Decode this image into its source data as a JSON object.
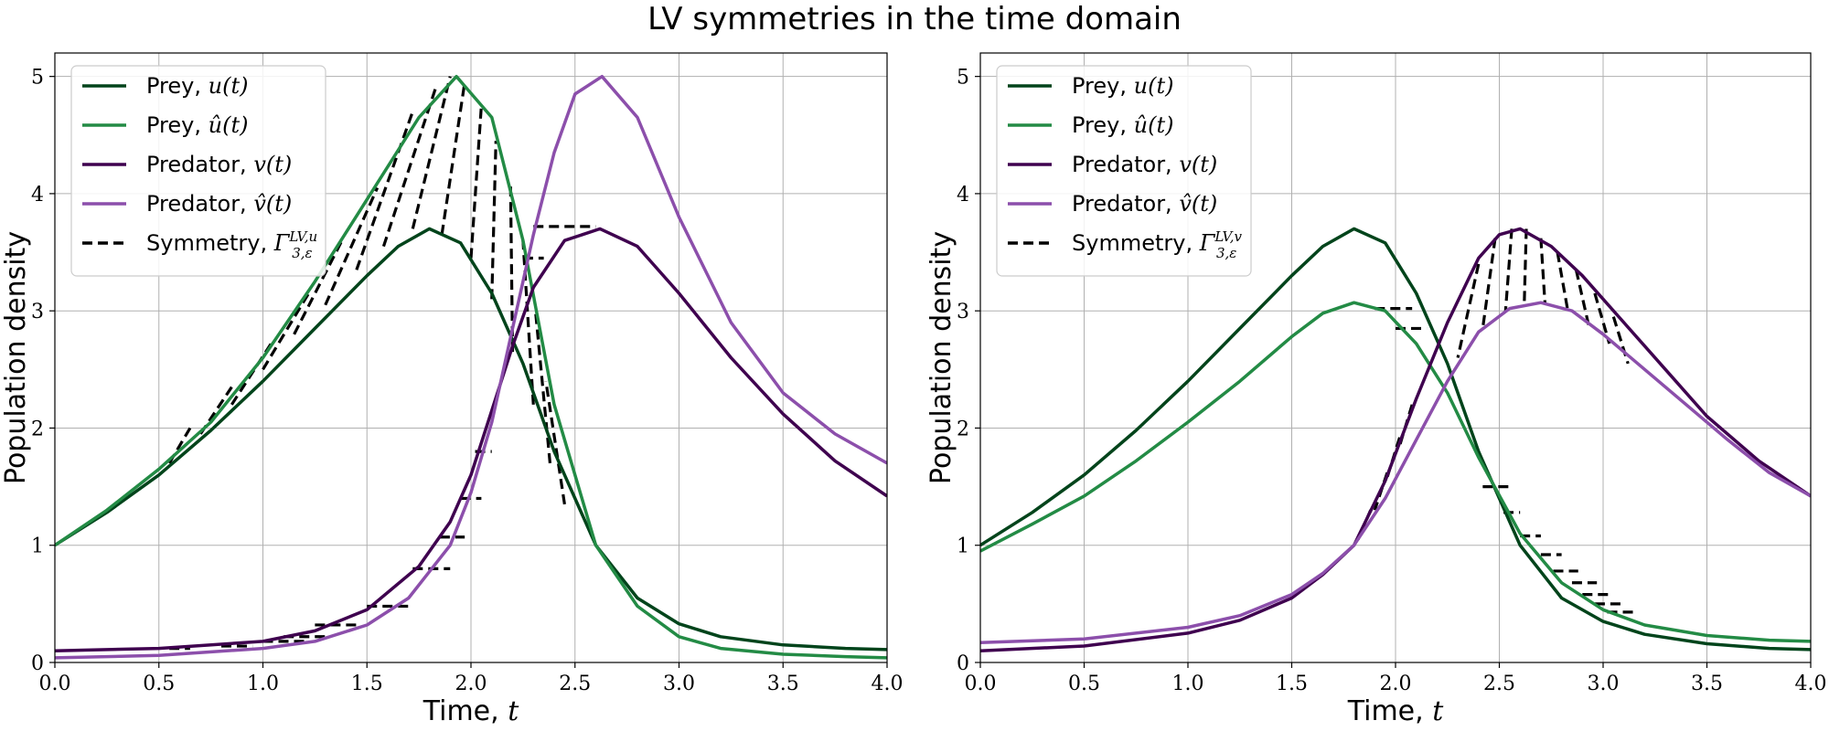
{
  "figure_title": "LV symmetries in the time domain",
  "colors": {
    "prey": "#00441b",
    "prey_hat": "#238b45",
    "predator": "#3f004f",
    "predator_hat": "#8c4fab",
    "symmetry": "#000000",
    "grid": "#b0b0b0"
  },
  "chart_data": [
    {
      "type": "line",
      "title": "",
      "xlabel": "Time, t",
      "ylabel": "Population density",
      "xlim": [
        0,
        4
      ],
      "ylim": [
        0,
        5.2
      ],
      "xticks": [
        "0.0",
        "0.5",
        "1.0",
        "1.5",
        "2.0",
        "2.5",
        "3.0",
        "3.5",
        "4.0"
      ],
      "yticks": [
        "0",
        "1",
        "2",
        "3",
        "4",
        "5"
      ],
      "grid": true,
      "legend_position": "top-left",
      "legend": [
        {
          "label": "Prey, u(t)",
          "color": "#00441b",
          "style": "solid"
        },
        {
          "label": "Prey, û(t)",
          "color": "#238b45",
          "style": "solid"
        },
        {
          "label": "Predator, v(t)",
          "color": "#3f004f",
          "style": "solid"
        },
        {
          "label": "Predator, v̂(t)",
          "color": "#8c4fab",
          "style": "solid"
        },
        {
          "label": "Symmetry, Γ^{LV,u}_{3,ε}",
          "color": "#000000",
          "style": "dashed"
        }
      ],
      "series": [
        {
          "name": "Prey, u(t)",
          "color": "#00441b",
          "x": [
            0,
            0.25,
            0.5,
            0.75,
            1.0,
            1.25,
            1.5,
            1.65,
            1.8,
            1.95,
            2.1,
            2.25,
            2.4,
            2.6,
            2.8,
            3.0,
            3.2,
            3.5,
            3.8,
            4.0
          ],
          "y": [
            1.0,
            1.28,
            1.6,
            1.98,
            2.4,
            2.85,
            3.3,
            3.55,
            3.7,
            3.58,
            3.15,
            2.55,
            1.8,
            1.0,
            0.55,
            0.33,
            0.22,
            0.15,
            0.12,
            0.11
          ]
        },
        {
          "name": "Prey, û(t)",
          "color": "#238b45",
          "x": [
            0,
            0.25,
            0.5,
            0.75,
            1.0,
            1.25,
            1.5,
            1.75,
            1.93,
            2.1,
            2.25,
            2.4,
            2.6,
            2.8,
            3.0,
            3.2,
            3.5,
            3.8,
            4.0
          ],
          "y": [
            1.0,
            1.3,
            1.65,
            2.05,
            2.6,
            3.25,
            3.95,
            4.65,
            5.0,
            4.65,
            3.6,
            2.2,
            1.0,
            0.48,
            0.22,
            0.12,
            0.07,
            0.05,
            0.04
          ]
        },
        {
          "name": "Predator, v(t)",
          "color": "#3f004f",
          "x": [
            0,
            0.5,
            1.0,
            1.25,
            1.5,
            1.75,
            1.9,
            2.0,
            2.1,
            2.2,
            2.3,
            2.45,
            2.62,
            2.8,
            3.0,
            3.25,
            3.5,
            3.75,
            4.0
          ],
          "y": [
            0.1,
            0.12,
            0.18,
            0.27,
            0.45,
            0.82,
            1.2,
            1.6,
            2.15,
            2.7,
            3.2,
            3.6,
            3.7,
            3.55,
            3.15,
            2.6,
            2.12,
            1.72,
            1.42
          ]
        },
        {
          "name": "Predator, v̂(t)",
          "color": "#8c4fab",
          "x": [
            0,
            0.5,
            1.0,
            1.25,
            1.5,
            1.7,
            1.9,
            2.0,
            2.1,
            2.2,
            2.3,
            2.4,
            2.5,
            2.63,
            2.8,
            3.0,
            3.25,
            3.5,
            3.75,
            4.0
          ],
          "y": [
            0.04,
            0.06,
            0.12,
            0.18,
            0.32,
            0.55,
            1.0,
            1.45,
            2.05,
            2.85,
            3.65,
            4.35,
            4.85,
            5.0,
            4.65,
            3.8,
            2.9,
            2.3,
            1.95,
            1.7
          ]
        }
      ],
      "symmetry_segments": [
        {
          "x": [
            0.55,
            0.65
          ],
          "y": [
            1.7,
            2.0
          ]
        },
        {
          "x": [
            0.7,
            0.85
          ],
          "y": [
            1.95,
            2.35
          ]
        },
        {
          "x": [
            0.85,
            1.05
          ],
          "y": [
            2.2,
            2.75
          ]
        },
        {
          "x": [
            1.0,
            1.22
          ],
          "y": [
            2.5,
            3.15
          ]
        },
        {
          "x": [
            1.15,
            1.38
          ],
          "y": [
            2.8,
            3.6
          ]
        },
        {
          "x": [
            1.3,
            1.55
          ],
          "y": [
            3.05,
            4.05
          ]
        },
        {
          "x": [
            1.45,
            1.72
          ],
          "y": [
            3.35,
            4.7
          ]
        },
        {
          "x": [
            1.58,
            1.83
          ],
          "y": [
            3.55,
            4.9
          ]
        },
        {
          "x": [
            1.72,
            1.9
          ],
          "y": [
            3.7,
            5.0
          ]
        },
        {
          "x": [
            1.86,
            1.97
          ],
          "y": [
            3.65,
            4.95
          ]
        },
        {
          "x": [
            2.0,
            2.05
          ],
          "y": [
            3.45,
            4.75
          ]
        },
        {
          "x": [
            2.1,
            2.12
          ],
          "y": [
            3.1,
            4.45
          ]
        },
        {
          "x": [
            2.2,
            2.19
          ],
          "y": [
            2.65,
            4.1
          ]
        },
        {
          "x": [
            2.3,
            2.25
          ],
          "y": [
            2.2,
            3.6
          ]
        },
        {
          "x": [
            2.38,
            2.31
          ],
          "y": [
            1.7,
            3.0
          ]
        },
        {
          "x": [
            2.45,
            2.36
          ],
          "y": [
            1.35,
            2.4
          ]
        },
        {
          "x": [
            0.55,
            0.65
          ],
          "y": [
            0.12,
            0.12
          ]
        },
        {
          "x": [
            0.8,
            0.95
          ],
          "y": [
            0.14,
            0.14
          ]
        },
        {
          "x": [
            1.0,
            1.2
          ],
          "y": [
            0.18,
            0.18
          ]
        },
        {
          "x": [
            1.1,
            1.3
          ],
          "y": [
            0.22,
            0.22
          ]
        },
        {
          "x": [
            1.25,
            1.45
          ],
          "y": [
            0.32,
            0.32
          ]
        },
        {
          "x": [
            1.5,
            1.72
          ],
          "y": [
            0.48,
            0.48
          ]
        },
        {
          "x": [
            1.72,
            1.9
          ],
          "y": [
            0.8,
            0.8
          ]
        },
        {
          "x": [
            1.85,
            1.97
          ],
          "y": [
            1.07,
            1.07
          ]
        },
        {
          "x": [
            1.95,
            2.05
          ],
          "y": [
            1.4,
            1.4
          ]
        },
        {
          "x": [
            2.02,
            2.1
          ],
          "y": [
            1.8,
            1.8
          ]
        },
        {
          "x": [
            2.25,
            2.35
          ],
          "y": [
            3.45,
            3.45
          ]
        },
        {
          "x": [
            2.3,
            2.6
          ],
          "y": [
            3.72,
            3.72
          ]
        }
      ]
    },
    {
      "type": "line",
      "title": "",
      "xlabel": "Time, t",
      "ylabel": "Population density",
      "xlim": [
        0,
        4
      ],
      "ylim": [
        0,
        5.2
      ],
      "xticks": [
        "0.0",
        "0.5",
        "1.0",
        "1.5",
        "2.0",
        "2.5",
        "3.0",
        "3.5",
        "4.0"
      ],
      "yticks": [
        "0",
        "1",
        "2",
        "3",
        "4",
        "5"
      ],
      "grid": true,
      "legend_position": "top-left",
      "legend": [
        {
          "label": "Prey, u(t)",
          "color": "#00441b",
          "style": "solid"
        },
        {
          "label": "Prey, û(t)",
          "color": "#238b45",
          "style": "solid"
        },
        {
          "label": "Predator, v(t)",
          "color": "#3f004f",
          "style": "solid"
        },
        {
          "label": "Predator, v̂(t)",
          "color": "#8c4fab",
          "style": "solid"
        },
        {
          "label": "Symmetry, Γ^{LV,v}_{3,ε}",
          "color": "#000000",
          "style": "dashed"
        }
      ],
      "series": [
        {
          "name": "Prey, u(t)",
          "color": "#00441b",
          "x": [
            0,
            0.25,
            0.5,
            0.75,
            1.0,
            1.25,
            1.5,
            1.65,
            1.8,
            1.95,
            2.1,
            2.25,
            2.4,
            2.6,
            2.8,
            3.0,
            3.2,
            3.5,
            3.8,
            4.0
          ],
          "y": [
            1.0,
            1.28,
            1.6,
            1.98,
            2.4,
            2.85,
            3.3,
            3.55,
            3.7,
            3.58,
            3.15,
            2.55,
            1.8,
            1.0,
            0.55,
            0.35,
            0.24,
            0.16,
            0.12,
            0.11
          ]
        },
        {
          "name": "Prey, û(t)",
          "color": "#238b45",
          "x": [
            0,
            0.25,
            0.5,
            0.75,
            1.0,
            1.25,
            1.5,
            1.65,
            1.8,
            1.95,
            2.1,
            2.25,
            2.4,
            2.6,
            2.8,
            3.0,
            3.2,
            3.5,
            3.8,
            4.0
          ],
          "y": [
            0.95,
            1.18,
            1.42,
            1.72,
            2.05,
            2.4,
            2.78,
            2.98,
            3.07,
            3.0,
            2.72,
            2.3,
            1.75,
            1.1,
            0.68,
            0.45,
            0.32,
            0.23,
            0.19,
            0.18
          ]
        },
        {
          "name": "Predator, v(t)",
          "color": "#3f004f",
          "x": [
            0,
            0.5,
            1.0,
            1.25,
            1.5,
            1.65,
            1.8,
            1.95,
            2.1,
            2.25,
            2.4,
            2.5,
            2.6,
            2.75,
            2.9,
            3.1,
            3.3,
            3.5,
            3.75,
            4.0
          ],
          "y": [
            0.1,
            0.14,
            0.25,
            0.36,
            0.55,
            0.75,
            1.0,
            1.55,
            2.25,
            2.9,
            3.45,
            3.65,
            3.7,
            3.55,
            3.3,
            2.9,
            2.5,
            2.1,
            1.72,
            1.42
          ]
        },
        {
          "name": "Predator, v̂(t)",
          "color": "#8c4fab",
          "x": [
            0,
            0.5,
            1.0,
            1.25,
            1.5,
            1.65,
            1.8,
            1.95,
            2.1,
            2.25,
            2.4,
            2.55,
            2.7,
            2.85,
            3.0,
            3.2,
            3.4,
            3.6,
            3.8,
            4.0
          ],
          "y": [
            0.17,
            0.2,
            0.3,
            0.4,
            0.58,
            0.76,
            1.0,
            1.4,
            1.9,
            2.4,
            2.82,
            3.02,
            3.07,
            3.0,
            2.8,
            2.5,
            2.2,
            1.9,
            1.62,
            1.42
          ]
        }
      ],
      "symmetry_segments": [
        {
          "x": [
            1.9,
            2.08
          ],
          "y": [
            3.02,
            3.02
          ]
        },
        {
          "x": [
            2.0,
            2.15
          ],
          "y": [
            2.85,
            2.85
          ]
        },
        {
          "x": [
            2.42,
            2.55
          ],
          "y": [
            1.5,
            1.5
          ]
        },
        {
          "x": [
            2.52,
            2.6
          ],
          "y": [
            1.28,
            1.28
          ]
        },
        {
          "x": [
            2.6,
            2.7
          ],
          "y": [
            1.08,
            1.08
          ]
        },
        {
          "x": [
            2.7,
            2.8
          ],
          "y": [
            0.92,
            0.92
          ]
        },
        {
          "x": [
            2.76,
            2.88
          ],
          "y": [
            0.78,
            0.78
          ]
        },
        {
          "x": [
            2.85,
            2.97
          ],
          "y": [
            0.68,
            0.68
          ]
        },
        {
          "x": [
            2.9,
            3.03
          ],
          "y": [
            0.58,
            0.58
          ]
        },
        {
          "x": [
            2.96,
            3.1
          ],
          "y": [
            0.5,
            0.5
          ]
        },
        {
          "x": [
            3.02,
            3.15
          ],
          "y": [
            0.43,
            0.43
          ]
        },
        {
          "x": [
            1.88,
            1.82
          ],
          "y": [
            1.3,
            1.05
          ]
        },
        {
          "x": [
            1.96,
            1.9
          ],
          "y": [
            1.62,
            1.3
          ]
        },
        {
          "x": [
            2.02,
            1.96
          ],
          "y": [
            1.92,
            1.58
          ]
        },
        {
          "x": [
            2.08,
            2.02
          ],
          "y": [
            2.2,
            1.85
          ]
        },
        {
          "x": [
            2.4,
            2.3
          ],
          "y": [
            3.4,
            2.6
          ]
        },
        {
          "x": [
            2.48,
            2.42
          ],
          "y": [
            3.62,
            2.85
          ]
        },
        {
          "x": [
            2.56,
            2.53
          ],
          "y": [
            3.7,
            3.0
          ]
        },
        {
          "x": [
            2.63,
            2.62
          ],
          "y": [
            3.7,
            3.05
          ]
        },
        {
          "x": [
            2.7,
            2.72
          ],
          "y": [
            3.62,
            3.06
          ]
        },
        {
          "x": [
            2.78,
            2.83
          ],
          "y": [
            3.5,
            3.0
          ]
        },
        {
          "x": [
            2.87,
            2.93
          ],
          "y": [
            3.35,
            2.88
          ]
        },
        {
          "x": [
            2.96,
            3.03
          ],
          "y": [
            3.15,
            2.72
          ]
        },
        {
          "x": [
            3.05,
            3.12
          ],
          "y": [
            2.95,
            2.55
          ]
        }
      ]
    }
  ]
}
